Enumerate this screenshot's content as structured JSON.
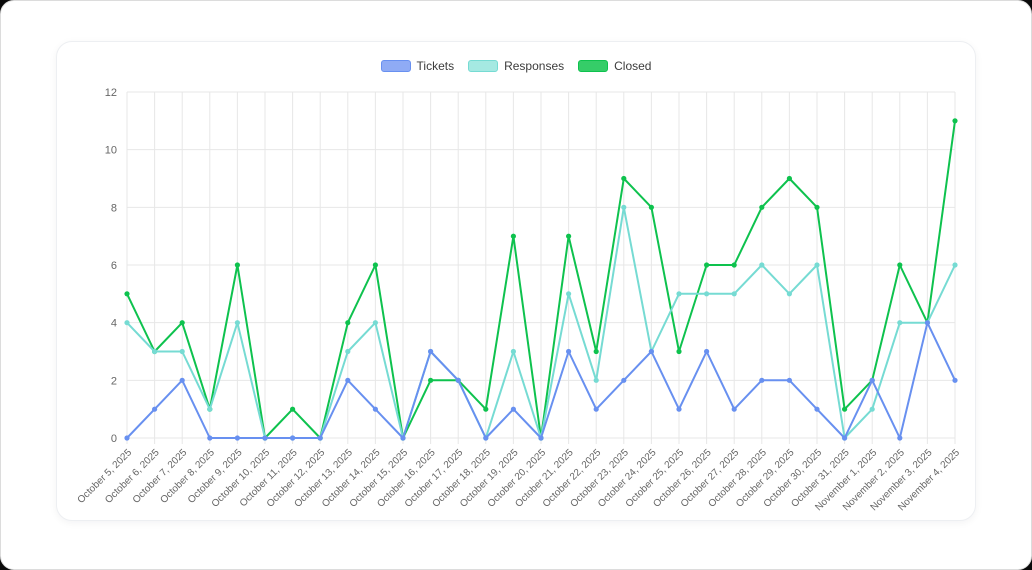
{
  "chart_data": {
    "type": "line",
    "title": "",
    "legend_position": "top",
    "grid": true,
    "ylim": [
      0,
      12
    ],
    "yticks": [
      0,
      2,
      4,
      6,
      8,
      10,
      12
    ],
    "axis": {
      "tick_color": "#666666",
      "grid_color": "#e7e7e7"
    },
    "categories": [
      "October 5, 2025",
      "October 6, 2025",
      "October 7, 2025",
      "October 8, 2025",
      "October 9, 2025",
      "October 10, 2025",
      "October 11, 2025",
      "October 12, 2025",
      "October 13, 2025",
      "October 14, 2025",
      "October 15, 2025",
      "October 16, 2025",
      "October 17, 2025",
      "October 18, 2025",
      "October 19, 2025",
      "October 20, 2025",
      "October 21, 2025",
      "October 22, 2025",
      "October 23, 2025",
      "October 24, 2025",
      "October 25, 2025",
      "October 26, 2025",
      "October 27, 2025",
      "October 28, 2025",
      "October 29, 2025",
      "October 30, 2025",
      "October 31, 2025",
      "November 1, 2025",
      "November 2, 2025",
      "November 3, 2025",
      "November 4, 2025"
    ],
    "series": [
      {
        "name": "Tickets",
        "color": "#6890f0",
        "swatch_fill": "#8fabf5",
        "values": [
          0,
          1,
          2,
          0,
          0,
          0,
          0,
          0,
          2,
          1,
          0,
          3,
          2,
          0,
          1,
          0,
          3,
          1,
          2,
          3,
          1,
          3,
          1,
          2,
          2,
          1,
          0,
          2,
          0,
          4,
          2
        ]
      },
      {
        "name": "Responses",
        "color": "#76dbd3",
        "swatch_fill": "#a5e9e2",
        "values": [
          4,
          3,
          3,
          1,
          4,
          0,
          0,
          0,
          3,
          4,
          0,
          3,
          2,
          0,
          3,
          0,
          5,
          2,
          8,
          3,
          5,
          5,
          5,
          6,
          5,
          6,
          0,
          1,
          4,
          4,
          6
        ]
      },
      {
        "name": "Closed",
        "color": "#0ec24e",
        "swatch_fill": "#35cd68",
        "values": [
          5,
          3,
          4,
          1,
          6,
          0,
          1,
          0,
          4,
          6,
          0,
          2,
          2,
          1,
          7,
          0,
          7,
          3,
          9,
          8,
          3,
          6,
          6,
          8,
          9,
          8,
          1,
          2,
          6,
          4,
          11
        ]
      }
    ]
  }
}
